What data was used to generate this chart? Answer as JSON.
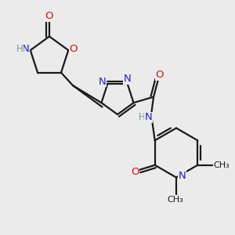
{
  "bg_color": "#ebebeb",
  "bond_color": "#1a1a1a",
  "N_color": "#2222bb",
  "O_color": "#cc1111",
  "H_color": "#7a9a9a",
  "line_width": 1.6,
  "font_size": 8.5,
  "xlim": [
    0,
    10
  ],
  "ylim": [
    0,
    10
  ]
}
